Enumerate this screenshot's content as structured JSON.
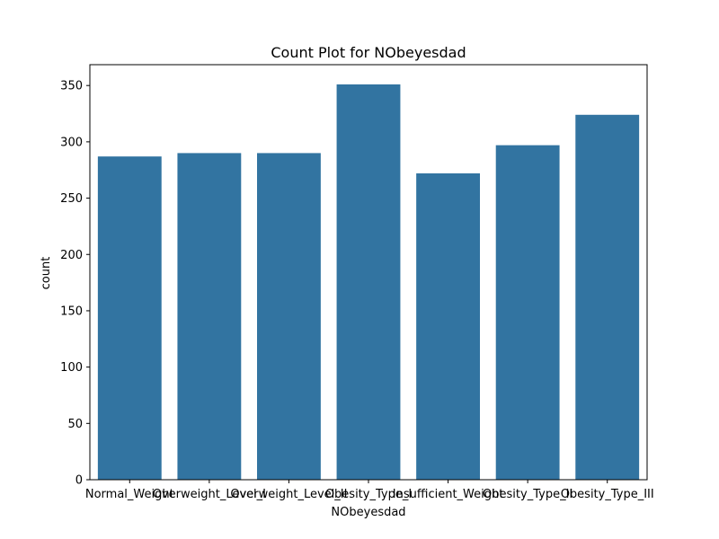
{
  "chart_data": {
    "type": "bar",
    "title": "Count Plot for NObeyesdad",
    "xlabel": "NObeyesdad",
    "ylabel": "count",
    "categories": [
      "Normal_Weight",
      "Overweight_Level_I",
      "Overweight_Level_II",
      "Obesity_Type_I",
      "Insufficient_Weight",
      "Obesity_Type_II",
      "Obesity_Type_III"
    ],
    "values": [
      287,
      290,
      290,
      351,
      272,
      297,
      324
    ],
    "ylim": [
      0,
      368.5
    ],
    "yticks": [
      0,
      50,
      100,
      150,
      200,
      250,
      300,
      350
    ],
    "grid": false,
    "legend": "none",
    "bar_color": "#3274a1"
  }
}
